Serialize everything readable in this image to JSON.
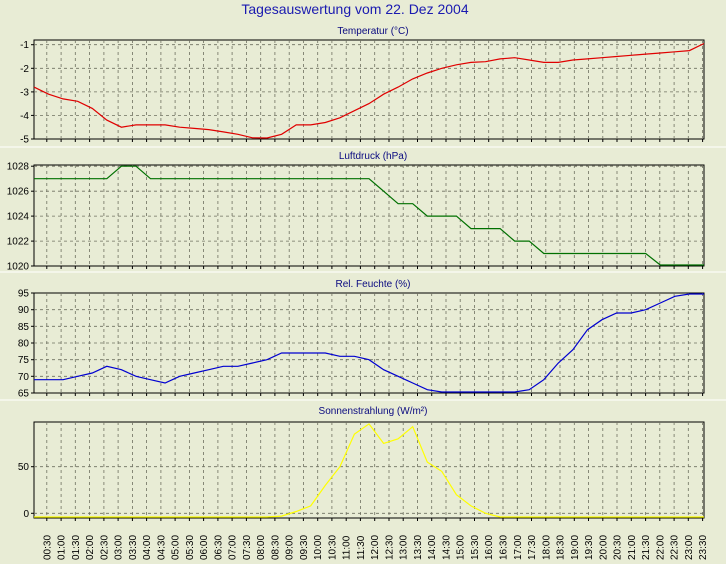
{
  "title": "Tagesauswertung vom 22. Dez 2004",
  "x_tick_labels": [
    "00:30",
    "01:00",
    "01:30",
    "02:00",
    "02:30",
    "03:00",
    "03:30",
    "04:00",
    "04:30",
    "05:00",
    "05:30",
    "06:00",
    "06:30",
    "07:00",
    "07:30",
    "08:00",
    "08:30",
    "09:00",
    "09:30",
    "10:00",
    "10:30",
    "11:00",
    "11:30",
    "12:00",
    "12:30",
    "13:00",
    "13:30",
    "14:00",
    "14:30",
    "15:00",
    "15:30",
    "16:00",
    "16:30",
    "17:00",
    "17:30",
    "18:00",
    "18:30",
    "19:00",
    "19:30",
    "20:00",
    "20:30",
    "21:00",
    "21:30",
    "22:00",
    "22:30",
    "23:00",
    "23:30"
  ],
  "chart_data": [
    {
      "type": "line",
      "title": "Temperatur (°C)",
      "color": "#e00000",
      "grid": true,
      "ylim": [
        -5,
        -0.8
      ],
      "yticks": [
        -1,
        -2,
        -3,
        -4,
        -5
      ],
      "x": [
        0,
        1,
        2,
        3,
        4,
        5,
        6,
        7,
        8,
        9,
        10,
        11,
        12,
        13,
        14,
        15,
        16,
        17,
        18,
        19,
        20,
        21,
        22,
        23,
        24,
        25,
        26,
        27,
        28,
        29,
        30,
        31,
        32,
        33,
        34,
        35,
        36,
        37,
        38,
        39,
        40,
        41,
        42,
        43,
        44,
        45,
        46
      ],
      "values": [
        -2.8,
        -3.1,
        -3.3,
        -3.4,
        -3.7,
        -4.2,
        -4.5,
        -4.4,
        -4.4,
        -4.4,
        -4.5,
        -4.55,
        -4.6,
        -4.7,
        -4.8,
        -4.95,
        -5.0,
        -4.8,
        -4.4,
        -4.4,
        -4.3,
        -4.1,
        -3.8,
        -3.5,
        -3.1,
        -2.8,
        -2.45,
        -2.2,
        -2.0,
        -1.85,
        -1.75,
        -1.72,
        -1.6,
        -1.55,
        -1.65,
        -1.75,
        -1.75,
        -1.65,
        -1.6,
        -1.55,
        -1.5,
        -1.45,
        -1.4,
        -1.35,
        -1.3,
        -1.25,
        -0.95
      ]
    },
    {
      "type": "line",
      "title": "Luftdruck (hPa)",
      "color": "#007000",
      "grid": true,
      "ylim": [
        1020,
        1028.1
      ],
      "yticks": [
        1028,
        1026,
        1024,
        1022,
        1020
      ],
      "x": [
        0,
        1,
        2,
        3,
        4,
        5,
        6,
        7,
        8,
        9,
        10,
        11,
        12,
        13,
        14,
        15,
        16,
        17,
        18,
        19,
        20,
        21,
        22,
        23,
        24,
        25,
        26,
        27,
        28,
        29,
        30,
        31,
        32,
        33,
        34,
        35,
        36,
        37,
        38,
        39,
        40,
        41,
        42,
        43,
        44,
        45,
        46
      ],
      "values": [
        1027,
        1027,
        1027,
        1027,
        1027,
        1027,
        1028,
        1028,
        1027,
        1027,
        1027,
        1027,
        1027,
        1027,
        1027,
        1027,
        1027,
        1027,
        1027,
        1027,
        1027,
        1027,
        1027,
        1027,
        1026,
        1025,
        1025,
        1024,
        1024,
        1024,
        1023,
        1023,
        1023,
        1022,
        1022,
        1021,
        1021,
        1021,
        1021,
        1021,
        1021,
        1021,
        1021,
        1020,
        1020,
        1020,
        1020
      ]
    },
    {
      "type": "line",
      "title": "Rel. Feuchte (%)",
      "color": "#0000d0",
      "grid": true,
      "ylim": [
        65,
        95
      ],
      "yticks": [
        95,
        90,
        85,
        80,
        75,
        70,
        65
      ],
      "x": [
        0,
        1,
        2,
        3,
        4,
        5,
        6,
        7,
        8,
        9,
        10,
        11,
        12,
        13,
        14,
        15,
        16,
        17,
        18,
        19,
        20,
        21,
        22,
        23,
        24,
        25,
        26,
        27,
        28,
        29,
        30,
        31,
        32,
        33,
        34,
        35,
        36,
        37,
        38,
        39,
        40,
        41,
        42,
        43,
        44,
        45,
        46
      ],
      "values": [
        69,
        69,
        69,
        70,
        71,
        73,
        72,
        70,
        69,
        68,
        70,
        71,
        72,
        73,
        73,
        74,
        75,
        77,
        77,
        77,
        77,
        76,
        76,
        75,
        72,
        70,
        68,
        66,
        65,
        65,
        65,
        65,
        65,
        65,
        66,
        69,
        74,
        78,
        84,
        87,
        89,
        89,
        90,
        92,
        94,
        95,
        95
      ]
    },
    {
      "type": "line",
      "title": "Sonnenstrahlung (W/m²)",
      "color": "#ffff00",
      "grid": true,
      "ylim": [
        -5,
        98
      ],
      "yticks": [
        50,
        0
      ],
      "x": [
        0,
        1,
        2,
        3,
        4,
        5,
        6,
        7,
        8,
        9,
        10,
        11,
        12,
        13,
        14,
        15,
        16,
        17,
        18,
        19,
        20,
        21,
        22,
        23,
        24,
        25,
        26,
        27,
        28,
        29,
        30,
        31,
        32,
        33,
        34,
        35,
        36,
        37,
        38,
        39,
        40,
        41,
        42,
        43,
        44,
        45,
        46
      ],
      "values": [
        -5,
        -5,
        -5,
        -5,
        -5,
        -5,
        -5,
        -5,
        -5,
        -5,
        -5,
        -5,
        -5,
        -5,
        -5,
        -5,
        -5,
        -3,
        2,
        8,
        30,
        50,
        85,
        96,
        75,
        80,
        93,
        55,
        45,
        20,
        8,
        0,
        -4,
        -5,
        -5,
        -5,
        -5,
        -5,
        -5,
        -5,
        -5,
        -5,
        -5,
        -5,
        -5,
        -5,
        -5
      ]
    }
  ]
}
